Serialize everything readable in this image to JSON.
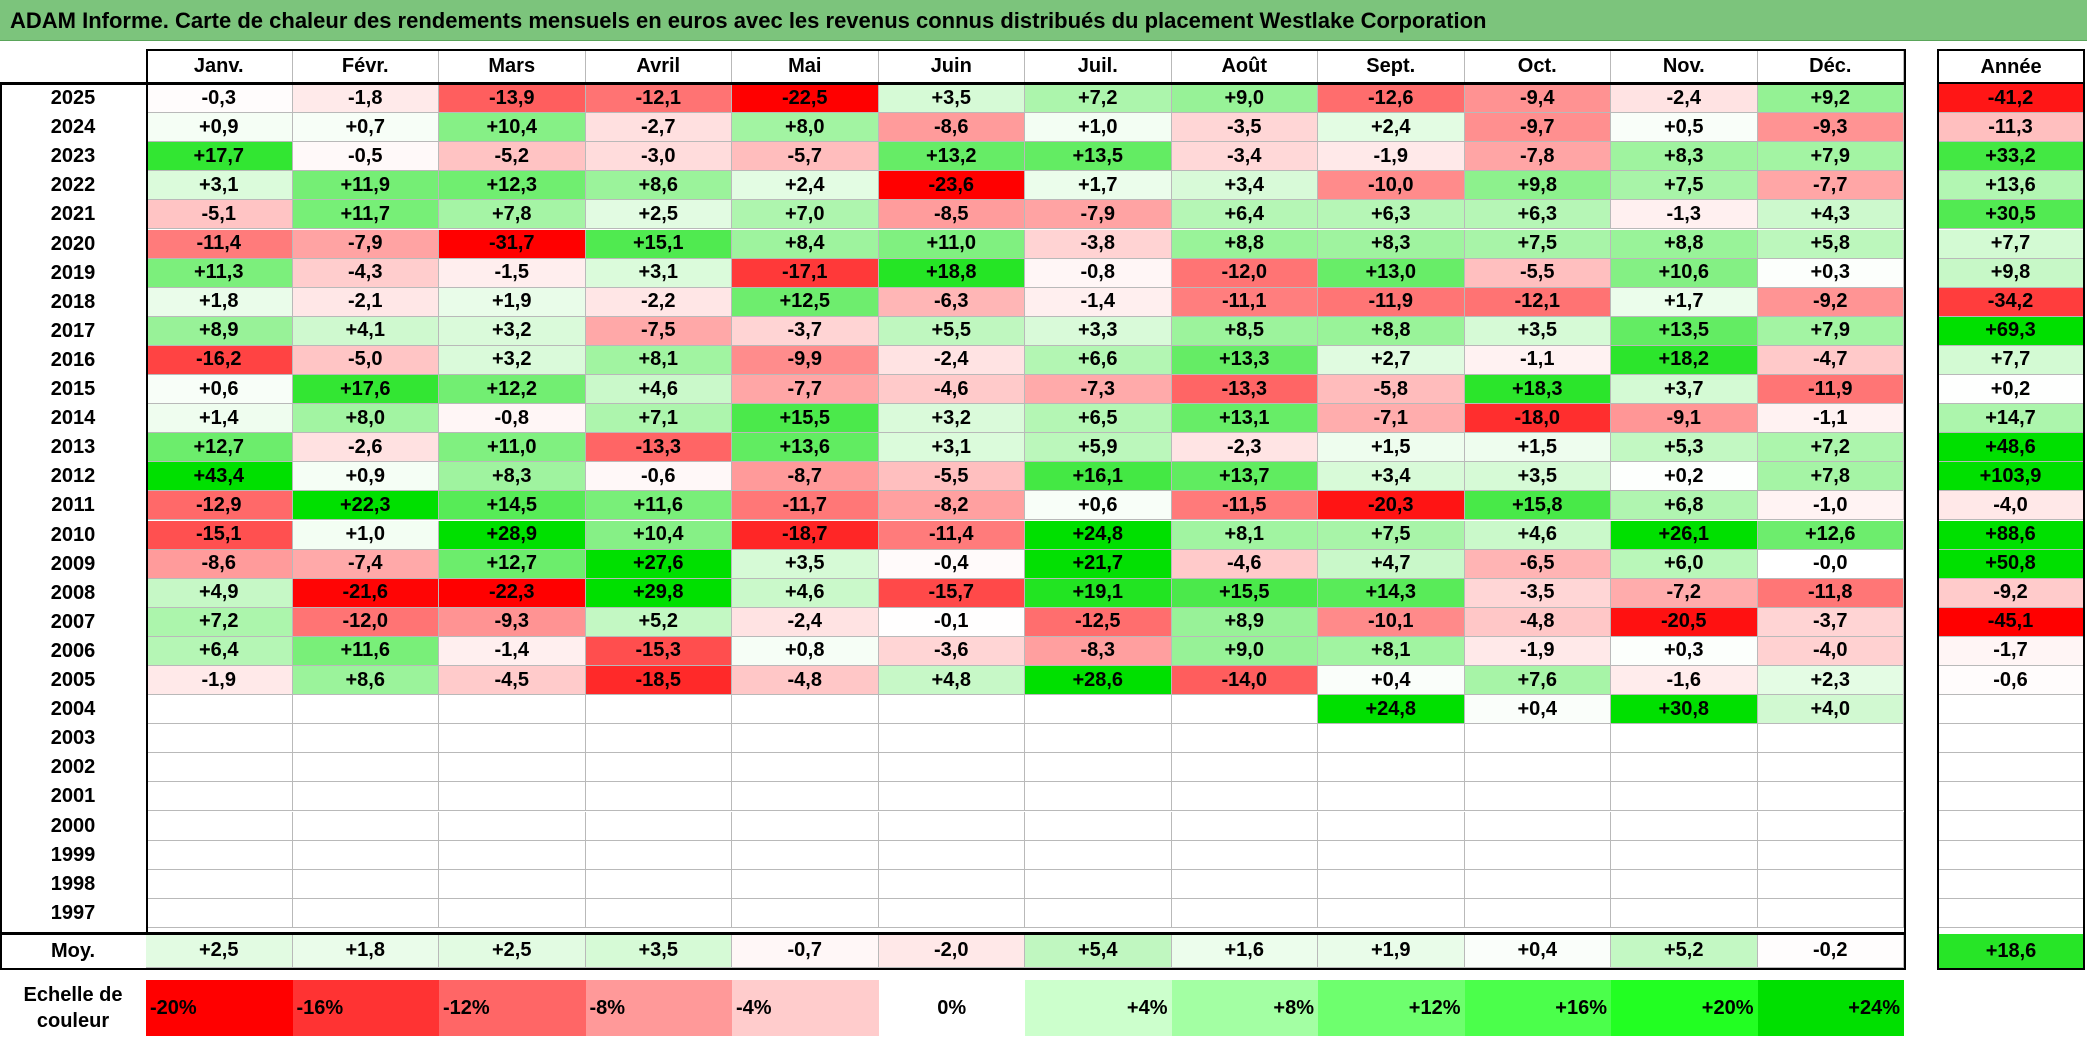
{
  "title": "ADAM Informe. Carte de chaleur des rendements mensuels en euros avec les revenus connus distribués du placement Westlake Corporation",
  "chart_data": {
    "type": "heatmap",
    "months": [
      "Janv.",
      "Févr.",
      "Mars",
      "Avril",
      "Mai",
      "Juin",
      "Juil.",
      "Août",
      "Sept.",
      "Oct.",
      "Nov.",
      "Déc."
    ],
    "year_header": "Année",
    "rows": [
      {
        "year": "2025",
        "values": [
          "-0,3",
          "-1,8",
          "-13,9",
          "-12,1",
          "-22,5",
          "+3,5",
          "+7,2",
          "+9,0",
          "-12,6",
          "-9,4",
          "-2,4",
          "+9,2"
        ],
        "annual": "-41,2"
      },
      {
        "year": "2024",
        "values": [
          "+0,9",
          "+0,7",
          "+10,4",
          "-2,7",
          "+8,0",
          "-8,6",
          "+1,0",
          "-3,5",
          "+2,4",
          "-9,7",
          "+0,5",
          "-9,3"
        ],
        "annual": "-11,3"
      },
      {
        "year": "2023",
        "values": [
          "+17,7",
          "-0,5",
          "-5,2",
          "-3,0",
          "-5,7",
          "+13,2",
          "+13,5",
          "-3,4",
          "-1,9",
          "-7,8",
          "+8,3",
          "+7,9"
        ],
        "annual": "+33,2"
      },
      {
        "year": "2022",
        "values": [
          "+3,1",
          "+11,9",
          "+12,3",
          "+8,6",
          "+2,4",
          "-23,6",
          "+1,7",
          "+3,4",
          "-10,0",
          "+9,8",
          "+7,5",
          "-7,7"
        ],
        "annual": "+13,6"
      },
      {
        "year": "2021",
        "values": [
          "-5,1",
          "+11,7",
          "+7,8",
          "+2,5",
          "+7,0",
          "-8,5",
          "-7,9",
          "+6,4",
          "+6,3",
          "+6,3",
          "-1,3",
          "+4,3"
        ],
        "annual": "+30,5"
      },
      {
        "year": "2020",
        "values": [
          "-11,4",
          "-7,9",
          "-31,7",
          "+15,1",
          "+8,4",
          "+11,0",
          "-3,8",
          "+8,8",
          "+8,3",
          "+7,5",
          "+8,8",
          "+5,8"
        ],
        "annual": "+7,7"
      },
      {
        "year": "2019",
        "values": [
          "+11,3",
          "-4,3",
          "-1,5",
          "+3,1",
          "-17,1",
          "+18,8",
          "-0,8",
          "-12,0",
          "+13,0",
          "-5,5",
          "+10,6",
          "+0,3"
        ],
        "annual": "+9,8"
      },
      {
        "year": "2018",
        "values": [
          "+1,8",
          "-2,1",
          "+1,9",
          "-2,2",
          "+12,5",
          "-6,3",
          "-1,4",
          "-11,1",
          "-11,9",
          "-12,1",
          "+1,7",
          "-9,2"
        ],
        "annual": "-34,2"
      },
      {
        "year": "2017",
        "values": [
          "+8,9",
          "+4,1",
          "+3,2",
          "-7,5",
          "-3,7",
          "+5,5",
          "+3,3",
          "+8,5",
          "+8,8",
          "+3,5",
          "+13,5",
          "+7,9"
        ],
        "annual": "+69,3"
      },
      {
        "year": "2016",
        "values": [
          "-16,2",
          "-5,0",
          "+3,2",
          "+8,1",
          "-9,9",
          "-2,4",
          "+6,6",
          "+13,3",
          "+2,7",
          "-1,1",
          "+18,2",
          "-4,7"
        ],
        "annual": "+7,7"
      },
      {
        "year": "2015",
        "values": [
          "+0,6",
          "+17,6",
          "+12,2",
          "+4,6",
          "-7,7",
          "-4,6",
          "-7,3",
          "-13,3",
          "-5,8",
          "+18,3",
          "+3,7",
          "-11,9"
        ],
        "annual": "+0,2"
      },
      {
        "year": "2014",
        "values": [
          "+1,4",
          "+8,0",
          "-0,8",
          "+7,1",
          "+15,5",
          "+3,2",
          "+6,5",
          "+13,1",
          "-7,1",
          "-18,0",
          "-9,1",
          "-1,1"
        ],
        "annual": "+14,7"
      },
      {
        "year": "2013",
        "values": [
          "+12,7",
          "-2,6",
          "+11,0",
          "-13,3",
          "+13,6",
          "+3,1",
          "+5,9",
          "-2,3",
          "+1,5",
          "+1,5",
          "+5,3",
          "+7,2"
        ],
        "annual": "+48,6"
      },
      {
        "year": "2012",
        "values": [
          "+43,4",
          "+0,9",
          "+8,3",
          "-0,6",
          "-8,7",
          "-5,5",
          "+16,1",
          "+13,7",
          "+3,4",
          "+3,5",
          "+0,2",
          "+7,8"
        ],
        "annual": "+103,9"
      },
      {
        "year": "2011",
        "values": [
          "-12,9",
          "+22,3",
          "+14,5",
          "+11,6",
          "-11,7",
          "-8,2",
          "+0,6",
          "-11,5",
          "-20,3",
          "+15,8",
          "+6,8",
          "-1,0"
        ],
        "annual": "-4,0"
      },
      {
        "year": "2010",
        "values": [
          "-15,1",
          "+1,0",
          "+28,9",
          "+10,4",
          "-18,7",
          "-11,4",
          "+24,8",
          "+8,1",
          "+7,5",
          "+4,6",
          "+26,1",
          "+12,6"
        ],
        "annual": "+88,6"
      },
      {
        "year": "2009",
        "values": [
          "-8,6",
          "-7,4",
          "+12,7",
          "+27,6",
          "+3,5",
          "-0,4",
          "+21,7",
          "-4,6",
          "+4,7",
          "-6,5",
          "+6,0",
          "-0,0"
        ],
        "annual": "+50,8"
      },
      {
        "year": "2008",
        "values": [
          "+4,9",
          "-21,6",
          "-22,3",
          "+29,8",
          "+4,6",
          "-15,7",
          "+19,1",
          "+15,5",
          "+14,3",
          "-3,5",
          "-7,2",
          "-11,8"
        ],
        "annual": "-9,2"
      },
      {
        "year": "2007",
        "values": [
          "+7,2",
          "-12,0",
          "-9,3",
          "+5,2",
          "-2,4",
          "-0,1",
          "-12,5",
          "+8,9",
          "-10,1",
          "-4,8",
          "-20,5",
          "-3,7"
        ],
        "annual": "-45,1"
      },
      {
        "year": "2006",
        "values": [
          "+6,4",
          "+11,6",
          "-1,4",
          "-15,3",
          "+0,8",
          "-3,6",
          "-8,3",
          "+9,0",
          "+8,1",
          "-1,9",
          "+0,3",
          "-4,0"
        ],
        "annual": "-1,7"
      },
      {
        "year": "2005",
        "values": [
          "-1,9",
          "+8,6",
          "-4,5",
          "-18,5",
          "-4,8",
          "+4,8",
          "+28,6",
          "-14,0",
          "+0,4",
          "+7,6",
          "-1,6",
          "+2,3"
        ],
        "annual": "-0,6"
      },
      {
        "year": "2004",
        "values": [
          "",
          "",
          "",
          "",
          "",
          "",
          "",
          "",
          "+24,8",
          "+0,4",
          "+30,8",
          "+4,0"
        ],
        "annual": ""
      },
      {
        "year": "2003",
        "values": [
          "",
          "",
          "",
          "",
          "",
          "",
          "",
          "",
          "",
          "",
          "",
          ""
        ],
        "annual": ""
      },
      {
        "year": "2002",
        "values": [
          "",
          "",
          "",
          "",
          "",
          "",
          "",
          "",
          "",
          "",
          "",
          ""
        ],
        "annual": ""
      },
      {
        "year": "2001",
        "values": [
          "",
          "",
          "",
          "",
          "",
          "",
          "",
          "",
          "",
          "",
          "",
          ""
        ],
        "annual": ""
      },
      {
        "year": "2000",
        "values": [
          "",
          "",
          "",
          "",
          "",
          "",
          "",
          "",
          "",
          "",
          "",
          ""
        ],
        "annual": ""
      },
      {
        "year": "1999",
        "values": [
          "",
          "",
          "",
          "",
          "",
          "",
          "",
          "",
          "",
          "",
          "",
          ""
        ],
        "annual": ""
      },
      {
        "year": "1998",
        "values": [
          "",
          "",
          "",
          "",
          "",
          "",
          "",
          "",
          "",
          "",
          "",
          ""
        ],
        "annual": ""
      },
      {
        "year": "1997",
        "values": [
          "",
          "",
          "",
          "",
          "",
          "",
          "",
          "",
          "",
          "",
          "",
          ""
        ],
        "annual": ""
      }
    ],
    "average": {
      "label": "Moy.",
      "values": [
        "+2,5",
        "+1,8",
        "+2,5",
        "+3,5",
        "-0,7",
        "-2,0",
        "+5,4",
        "+1,6",
        "+1,9",
        "+0,4",
        "+5,2",
        "-0,2"
      ],
      "annual": "+18,6"
    },
    "scale": {
      "label": "Echelle de couleur",
      "stops": [
        {
          "text": "-20%",
          "color": "#ff0000"
        },
        {
          "text": "-16%",
          "color": "#ff3333"
        },
        {
          "text": "-12%",
          "color": "#ff6666"
        },
        {
          "text": "-8%",
          "color": "#ff9999"
        },
        {
          "text": "-4%",
          "color": "#ffcccc"
        },
        {
          "text": "0%",
          "color": "#ffffff"
        },
        {
          "text": "+4%",
          "color": "#ccffcc"
        },
        {
          "text": "+8%",
          "color": "#a3ffa3"
        },
        {
          "text": "+12%",
          "color": "#6eff6e"
        },
        {
          "text": "+16%",
          "color": "#4bff4b"
        },
        {
          "text": "+20%",
          "color": "#22ff22"
        },
        {
          "text": "+24%",
          "color": "#00e000"
        }
      ]
    },
    "colors": {
      "negative_max": "#ff0000",
      "neutral": "#ffffff",
      "positive_max": "#00e000",
      "title_bar": "#7cc47c"
    }
  }
}
